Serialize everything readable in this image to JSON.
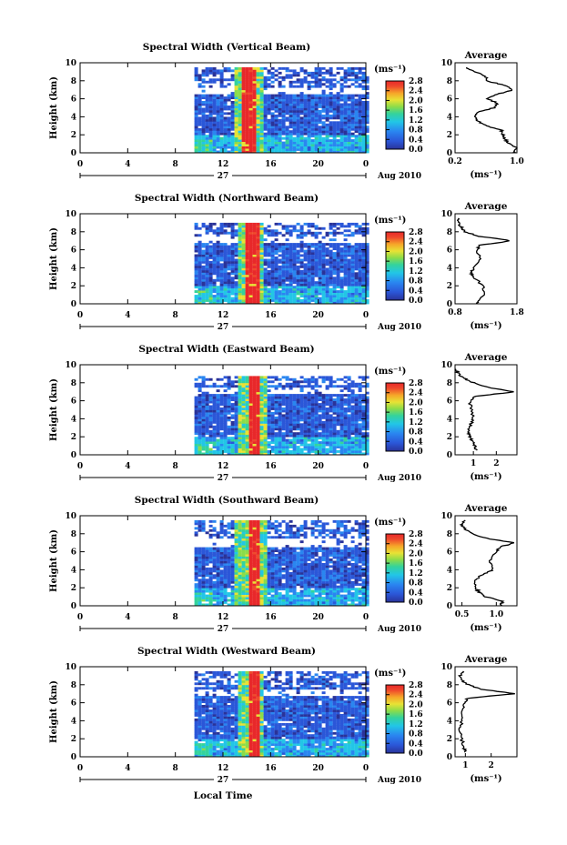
{
  "figure": {
    "date_label": "Aug 2010",
    "day_label": "27",
    "xlabel": "Local Time",
    "avg_title": "Average",
    "colorbar_unit": "(ms⁻¹)",
    "colorbar_ticks": [
      "0.0",
      "0.4",
      "0.8",
      "1.2",
      "1.6",
      "2.0",
      "2.4",
      "2.8"
    ],
    "colorbar_colors": [
      "#2a3399",
      "#2b57d8",
      "#2a86f0",
      "#22c6e6",
      "#34d39c",
      "#8bdc4a",
      "#e8e235",
      "#f6a629",
      "#ef4a2c",
      "#e8282a"
    ],
    "color_scale_ms": [
      0,
      2.8
    ],
    "height_axis_km": [
      0,
      10
    ],
    "time_axis_h": [
      0,
      24
    ],
    "time_ticks": [
      "0",
      "4",
      "8",
      "12",
      "16",
      "20",
      "0"
    ],
    "height_ticks": [
      "0",
      "2",
      "4",
      "6",
      "8",
      "10"
    ],
    "ylabel": "Height (km)"
  },
  "chart_data": [
    {
      "type": "heatmap",
      "title": "Spectral Width (Vertical Beam)",
      "ylabel": "Height (km)",
      "data_window_h": [
        9.6,
        24
      ],
      "top_km": 9.5,
      "core": {
        "t_start": 13.7,
        "t_end": 14.9,
        "value": 2.8
      },
      "halo": {
        "t_start": 13.1,
        "t_end": 15.4,
        "value": 1.6
      },
      "gap_above_km": 6.3,
      "average": {
        "xlim": [
          0.2,
          1.0
        ],
        "xticks": [
          "0.2",
          "1.0"
        ],
        "xlabel": "(ms⁻¹)",
        "profile": [
          [
            0,
            0.95
          ],
          [
            0.5,
            1.0
          ],
          [
            1,
            0.9
          ],
          [
            1.5,
            0.85
          ],
          [
            2,
            0.82
          ],
          [
            2.5,
            0.8
          ],
          [
            3,
            0.6
          ],
          [
            3.5,
            0.5
          ],
          [
            4,
            0.45
          ],
          [
            4.5,
            0.5
          ],
          [
            5,
            0.7
          ],
          [
            5.5,
            0.75
          ],
          [
            6,
            0.62
          ],
          [
            6.5,
            0.75
          ],
          [
            7,
            0.95
          ],
          [
            7.5,
            0.85
          ],
          [
            8,
            0.6
          ],
          [
            8.5,
            0.6
          ],
          [
            9,
            0.45
          ],
          [
            9.5,
            0.35
          ]
        ]
      }
    },
    {
      "type": "heatmap",
      "title": "Spectral Width (Northward Beam)",
      "ylabel": "Height (km)",
      "data_window_h": [
        9.6,
        24
      ],
      "top_km": 9.0,
      "core": {
        "t_start": 14.0,
        "t_end": 15.0,
        "value": 2.8
      },
      "halo": {
        "t_start": 13.3,
        "t_end": 15.4,
        "value": 1.6
      },
      "gap_above_km": 6.5,
      "average": {
        "xlim": [
          0.8,
          1.8
        ],
        "xticks": [
          "0.8",
          "1.8"
        ],
        "xlabel": "(ms⁻¹)",
        "profile": [
          [
            0,
            1.15
          ],
          [
            0.5,
            1.2
          ],
          [
            1,
            1.25
          ],
          [
            2,
            1.25
          ],
          [
            3,
            1.1
          ],
          [
            3.5,
            1.05
          ],
          [
            4,
            1.1
          ],
          [
            5,
            1.2
          ],
          [
            6,
            1.15
          ],
          [
            6.5,
            1.2
          ],
          [
            7,
            1.7
          ],
          [
            7.5,
            1.2
          ],
          [
            8,
            0.95
          ],
          [
            8.5,
            0.9
          ],
          [
            9,
            0.85
          ],
          [
            9.5,
            0.85
          ]
        ]
      }
    },
    {
      "type": "heatmap",
      "title": "Spectral Width (Eastward Beam)",
      "ylabel": "Height (km)",
      "data_window_h": [
        9.6,
        24
      ],
      "top_km": 8.6,
      "core": {
        "t_start": 14.1,
        "t_end": 15.1,
        "value": 2.8
      },
      "halo": {
        "t_start": 13.4,
        "t_end": 15.6,
        "value": 1.6
      },
      "gap_above_km": 6.6,
      "average": {
        "xlim": [
          0.2,
          2.9
        ],
        "xticks": [
          "1",
          "2"
        ],
        "xlabel": "(ms⁻¹)",
        "profile": [
          [
            0.5,
            1.1
          ],
          [
            1,
            1.05
          ],
          [
            1.5,
            0.95
          ],
          [
            2,
            0.85
          ],
          [
            2.5,
            0.8
          ],
          [
            3,
            0.8
          ],
          [
            3.5,
            0.9
          ],
          [
            4,
            1.0
          ],
          [
            5,
            0.9
          ],
          [
            6,
            0.85
          ],
          [
            6.5,
            1.1
          ],
          [
            7,
            2.8
          ],
          [
            7.5,
            1.6
          ],
          [
            8,
            1.0
          ],
          [
            8.5,
            0.6
          ],
          [
            9,
            0.35
          ],
          [
            9.5,
            0.25
          ]
        ]
      }
    },
    {
      "type": "heatmap",
      "title": "Spectral Width (Southward Beam)",
      "ylabel": "Height (km)",
      "data_window_h": [
        9.6,
        24
      ],
      "top_km": 9.5,
      "core": {
        "t_start": 14.1,
        "t_end": 15.0,
        "value": 2.8
      },
      "halo": {
        "t_start": 13.1,
        "t_end": 15.6,
        "value": 1.6
      },
      "gap_above_km": 6.4,
      "average": {
        "xlim": [
          0.4,
          1.3
        ],
        "xticks": [
          "0.5",
          "1.0"
        ],
        "xlabel": "(ms⁻¹)",
        "profile": [
          [
            0,
            1.05
          ],
          [
            0.5,
            1.1
          ],
          [
            1,
            0.85
          ],
          [
            1.5,
            0.75
          ],
          [
            2,
            0.7
          ],
          [
            2.5,
            0.68
          ],
          [
            3,
            0.72
          ],
          [
            3.5,
            0.8
          ],
          [
            4,
            0.95
          ],
          [
            5,
            0.9
          ],
          [
            6,
            1.0
          ],
          [
            6.5,
            1.05
          ],
          [
            7,
            1.25
          ],
          [
            7.5,
            0.85
          ],
          [
            8,
            0.65
          ],
          [
            8.5,
            0.55
          ],
          [
            9,
            0.5
          ],
          [
            9.5,
            0.55
          ]
        ]
      }
    },
    {
      "type": "heatmap",
      "title": "Spectral Width (Westward Beam)",
      "ylabel": "Height (km)",
      "data_window_h": [
        9.6,
        24
      ],
      "top_km": 9.5,
      "core": {
        "t_start": 14.2,
        "t_end": 15.0,
        "value": 2.8
      },
      "halo": {
        "t_start": 13.4,
        "t_end": 15.4,
        "value": 1.6
      },
      "gap_above_km": 6.6,
      "average": {
        "xlim": [
          0.6,
          3.0
        ],
        "xticks": [
          "1",
          "2"
        ],
        "xlabel": "(ms⁻¹)",
        "profile": [
          [
            0.5,
            1.0
          ],
          [
            1,
            0.95
          ],
          [
            2,
            0.85
          ],
          [
            3,
            0.8
          ],
          [
            4,
            0.85
          ],
          [
            5,
            0.9
          ],
          [
            6,
            0.95
          ],
          [
            6.5,
            1.1
          ],
          [
            7,
            2.9
          ],
          [
            7.5,
            1.6
          ],
          [
            8,
            1.1
          ],
          [
            8.5,
            0.85
          ],
          [
            9,
            0.8
          ],
          [
            9.5,
            0.9
          ]
        ]
      }
    }
  ]
}
